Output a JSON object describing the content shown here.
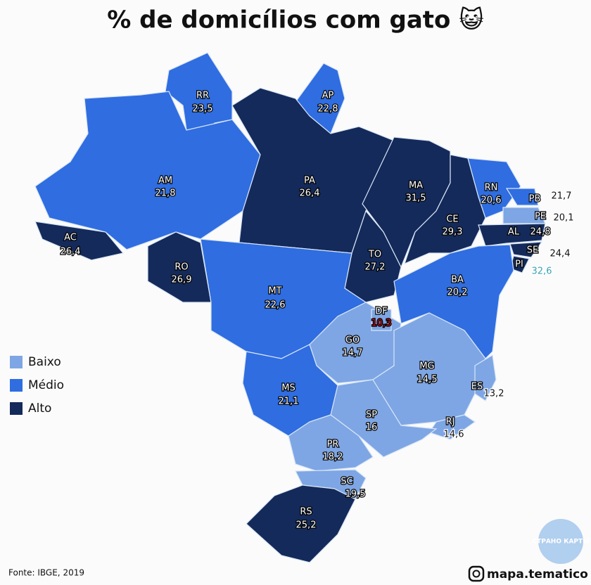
{
  "title": "% de domicílios com gato 😺",
  "legend": [
    {
      "name": "Baixo",
      "color": "#7ea6e4"
    },
    {
      "name": "Médio",
      "color": "#2f6de0"
    },
    {
      "name": "Alto",
      "color": "#142a5a"
    }
  ],
  "states": [
    {
      "abbr": "RR",
      "value": 23.5,
      "label": "23,5",
      "color": "#2f6de0"
    },
    {
      "abbr": "AP",
      "value": 22.8,
      "label": "22,8",
      "color": "#2f6de0"
    },
    {
      "abbr": "AM",
      "value": 21.8,
      "label": "21,8",
      "color": "#2f6de0"
    },
    {
      "abbr": "PA",
      "value": 26.4,
      "label": "26,4",
      "color": "#142a5a"
    },
    {
      "abbr": "MA",
      "value": 31.5,
      "label": "31,5",
      "color": "#142a5a"
    },
    {
      "abbr": "CE",
      "value": 29.3,
      "label": "29,3",
      "color": "#142a5a"
    },
    {
      "abbr": "RN",
      "value": 20.6,
      "label": "20,6",
      "color": "#2f6de0"
    },
    {
      "abbr": "PB",
      "value": 21.7,
      "label": "21,7",
      "color": "#2f6de0"
    },
    {
      "abbr": "PE",
      "value": 20.1,
      "label": "20,1",
      "color": "#7ea6e4"
    },
    {
      "abbr": "AL",
      "value": 24.8,
      "label": "24,8",
      "color": "#142a5a"
    },
    {
      "abbr": "SE",
      "value": 24.4,
      "label": "24,4",
      "color": "#142a5a"
    },
    {
      "abbr": "PI",
      "value": 32.6,
      "label": "32,6",
      "color": "#142a5a",
      "value_color": "#3aa3b3"
    },
    {
      "abbr": "AC",
      "value": 26.4,
      "label": "26,4",
      "color": "#142a5a"
    },
    {
      "abbr": "RO",
      "value": 26.9,
      "label": "26,9",
      "color": "#142a5a"
    },
    {
      "abbr": "TO",
      "value": 27.2,
      "label": "27,2",
      "color": "#142a5a"
    },
    {
      "abbr": "BA",
      "value": 20.2,
      "label": "20,2",
      "color": "#2f6de0"
    },
    {
      "abbr": "MT",
      "value": 22.6,
      "label": "22,6",
      "color": "#2f6de0"
    },
    {
      "abbr": "GO",
      "value": 14.7,
      "label": "14,7",
      "color": "#7ea6e4"
    },
    {
      "abbr": "DF",
      "value": 10.3,
      "label": "10,3",
      "color": "#7ea6e4",
      "value_color": "#d01010"
    },
    {
      "abbr": "MG",
      "value": 14.5,
      "label": "14,5",
      "color": "#7ea6e4"
    },
    {
      "abbr": "ES",
      "value": 13.2,
      "label": "13,2",
      "color": "#7ea6e4"
    },
    {
      "abbr": "RJ",
      "value": 14.6,
      "label": "14,6",
      "color": "#7ea6e4"
    },
    {
      "abbr": "SP",
      "value": 16,
      "label": "16",
      "color": "#7ea6e4"
    },
    {
      "abbr": "MS",
      "value": 21.1,
      "label": "21,1",
      "color": "#2f6de0"
    },
    {
      "abbr": "PR",
      "value": 18.2,
      "label": "18,2",
      "color": "#7ea6e4"
    },
    {
      "abbr": "SC",
      "value": 19.5,
      "label": "19,5",
      "color": "#7ea6e4"
    },
    {
      "abbr": "RS",
      "value": 25.2,
      "label": "25,2",
      "color": "#142a5a"
    }
  ],
  "source": "Fonte: IBGE, 2019",
  "credit": "mapa.tematico",
  "watermark": "СТРАНО КАРТЫ"
}
